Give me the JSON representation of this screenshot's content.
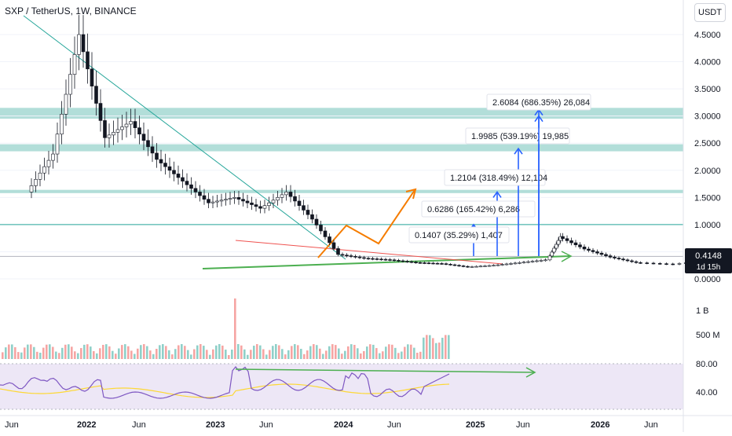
{
  "header": {
    "symbol": "SXP / TetherUS, 1W, BINANCE",
    "currency": "USDT"
  },
  "price_tag": {
    "value": "0.4148",
    "countdown": "1d 15h"
  },
  "colors": {
    "up": "#26a69a",
    "down": "#ef5350",
    "zone": "#9fd6cf",
    "projection_line": "#2962ff",
    "trend_green": "#4caf50",
    "path_orange": "#f57c00",
    "rsi_line": "#7e57c2",
    "rsi_ma": "#fdd835",
    "rsi_band": "#ede7f6"
  },
  "chart_data": [
    {
      "type": "candlestick",
      "yticks": [
        "0.0000",
        "0.5000",
        "1.0000",
        "1.5000",
        "2.0000",
        "2.5000",
        "3.0000",
        "3.5000",
        "4.0000",
        "4.5000"
      ],
      "ylim": [
        0,
        4.6
      ],
      "xticks": [
        "Jun",
        "2022",
        "Jun",
        "2023",
        "Jun",
        "2024",
        "Jun",
        "2025",
        "Jun",
        "2026",
        "Jun"
      ],
      "price_samples": [
        [
          2021.1,
          1.6
        ],
        [
          2021.2,
          2.3
        ],
        [
          2021.3,
          4.5
        ],
        [
          2021.4,
          2.6
        ],
        [
          2021.5,
          2.9
        ],
        [
          2021.6,
          2.2
        ],
        [
          2021.7,
          1.8
        ],
        [
          2021.8,
          1.4
        ],
        [
          2021.9,
          1.5
        ],
        [
          2022.0,
          1.3
        ],
        [
          2022.1,
          1.6
        ],
        [
          2022.2,
          1.1
        ],
        [
          2022.3,
          0.45
        ],
        [
          2022.4,
          0.38
        ],
        [
          2022.5,
          0.35
        ],
        [
          2022.6,
          0.3
        ],
        [
          2022.7,
          0.28
        ],
        [
          2022.8,
          0.22
        ],
        [
          2022.9,
          0.25
        ],
        [
          2023.0,
          0.3
        ],
        [
          2023.1,
          0.35
        ],
        [
          2023.15,
          0.78
        ],
        [
          2023.25,
          0.55
        ],
        [
          2023.35,
          0.4
        ],
        [
          2023.45,
          0.3
        ],
        [
          2023.6,
          0.27
        ],
        [
          2023.75,
          0.35
        ],
        [
          2023.85,
          0.4
        ],
        [
          2024.0,
          0.45
        ],
        [
          2024.1,
          0.48
        ],
        [
          2024.2,
          0.4
        ],
        [
          2024.35,
          0.3
        ],
        [
          2024.5,
          0.25
        ],
        [
          2024.6,
          0.26
        ],
        [
          2024.7,
          0.32
        ],
        [
          2024.8,
          0.41
        ]
      ],
      "zones": [
        [
          2.95,
          3.15
        ],
        [
          2.35,
          2.48
        ],
        [
          1.58,
          1.64
        ]
      ],
      "hlines": [
        1.0,
        0.4148
      ],
      "projections": [
        {
          "label": "0.1407 (35.29%) 1,407",
          "from": 0.42,
          "to": 1.0
        },
        {
          "label": "0.6286 (165.42%) 6,286",
          "from": 0.42,
          "to": 1.6
        },
        {
          "label": "1.2104 (318.49%) 12,104",
          "from": 0.42,
          "to": 2.4
        },
        {
          "label": "1.9985 (539.19%) 19,985",
          "from": 0.42,
          "to": 3.0
        },
        {
          "label": "2.6084 (686.35%) 26,084",
          "from": 0.42,
          "to": 3.0
        }
      ]
    },
    {
      "type": "bar",
      "label": "volume",
      "yticks": [
        "1 B",
        "500 M"
      ]
    },
    {
      "type": "line",
      "label": "RSI",
      "yticks": [
        "80.00",
        "40.00"
      ],
      "ylim": [
        20,
        90
      ]
    }
  ]
}
